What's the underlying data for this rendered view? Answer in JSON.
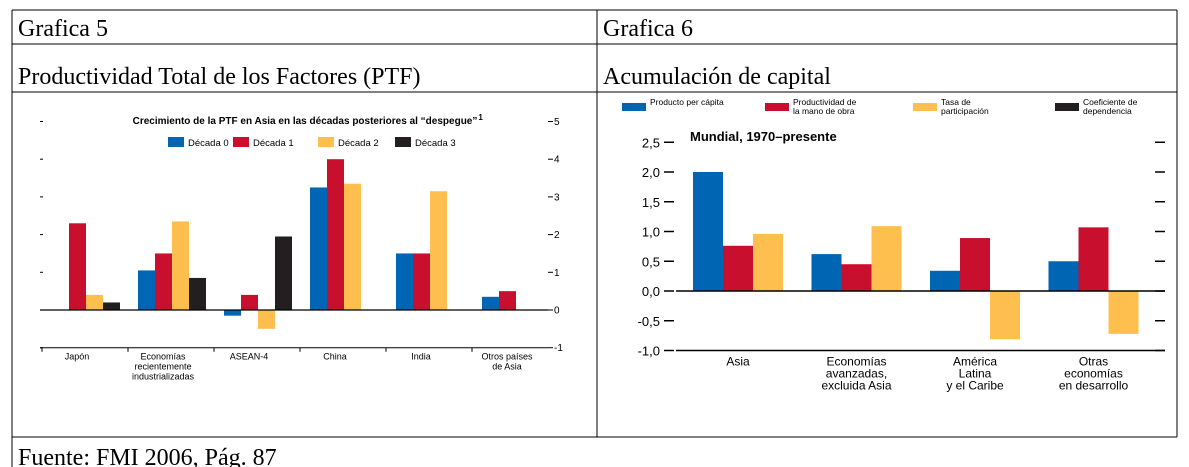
{
  "table": {
    "rows": [
      [
        "Grafica 5",
        "Grafica 6"
      ],
      [
        "Productividad Total de los Factores (PTF)",
        "Acumulación de capital"
      ]
    ],
    "footer": "Fuente: FMI 2006, Pág. 87"
  },
  "charts": [
    {
      "type": "bar",
      "title": "Crecimiento de la PTF en Asia en las décadas posteriores al “despegue”",
      "title_note": "1",
      "categories": [
        [
          "Japón"
        ],
        [
          "Economías",
          "recientemente",
          "industrializadas"
        ],
        [
          "ASEAN-4"
        ],
        [
          "China"
        ],
        [
          "India"
        ],
        [
          "Otros países",
          "de Asia"
        ]
      ],
      "series": [
        {
          "name": "Década 0",
          "color": "#0066b3",
          "values": [
            null,
            1.05,
            -0.15,
            3.25,
            1.5,
            0.35
          ]
        },
        {
          "name": "Década 1",
          "color": "#c8102e",
          "values": [
            2.3,
            1.5,
            0.4,
            4.0,
            1.5,
            0.5
          ]
        },
        {
          "name": "Década 2",
          "color": "#ffbf4f",
          "values": [
            0.4,
            2.35,
            -0.5,
            3.35,
            3.15,
            null
          ]
        },
        {
          "name": "Década 3",
          "color": "#231f20",
          "values": [
            0.2,
            0.85,
            1.95,
            null,
            null,
            null
          ]
        }
      ],
      "ylim": [
        -1,
        5
      ],
      "yticks": [
        -1,
        0,
        1,
        2,
        3,
        4,
        5
      ]
    },
    {
      "type": "bar",
      "title": "Mundial, 1970–presente",
      "categories": [
        [
          "Asia"
        ],
        [
          "Economías",
          "avanzadas,",
          "excluida Asia"
        ],
        [
          "América",
          "Latina",
          "y el Caribe"
        ],
        [
          "Otras",
          "economías",
          "en desarrollo"
        ]
      ],
      "series": [
        {
          "name": "Producto per cápita",
          "color": "#0066b3",
          "values": [
            2.0,
            0.62,
            0.34,
            0.5
          ]
        },
        {
          "name": "Productividad de la mano de obra",
          "color": "#c8102e",
          "values": [
            0.76,
            0.45,
            0.89,
            1.07
          ]
        },
        {
          "name": "Tasa de participación",
          "color": "#ffbf4f",
          "values": [
            0.96,
            1.09,
            -0.81,
            -0.72
          ]
        },
        {
          "name": "Coeficiente de dependencia",
          "color": "#231f20",
          "values": [
            null,
            null,
            null,
            null
          ]
        }
      ],
      "ylim": [
        -1,
        2.5
      ],
      "yticks": [
        {
          "value": -1,
          "label": "-1,0"
        },
        {
          "value": -0.5,
          "label": "-0,5"
        },
        {
          "value": 0,
          "label": "0,0"
        },
        {
          "value": 0.5,
          "label": "0,5"
        },
        {
          "value": 1,
          "label": "1,0"
        },
        {
          "value": 1.5,
          "label": "1,5"
        },
        {
          "value": 2,
          "label": "2,0"
        },
        {
          "value": 2.5,
          "label": "2,5"
        }
      ]
    }
  ]
}
